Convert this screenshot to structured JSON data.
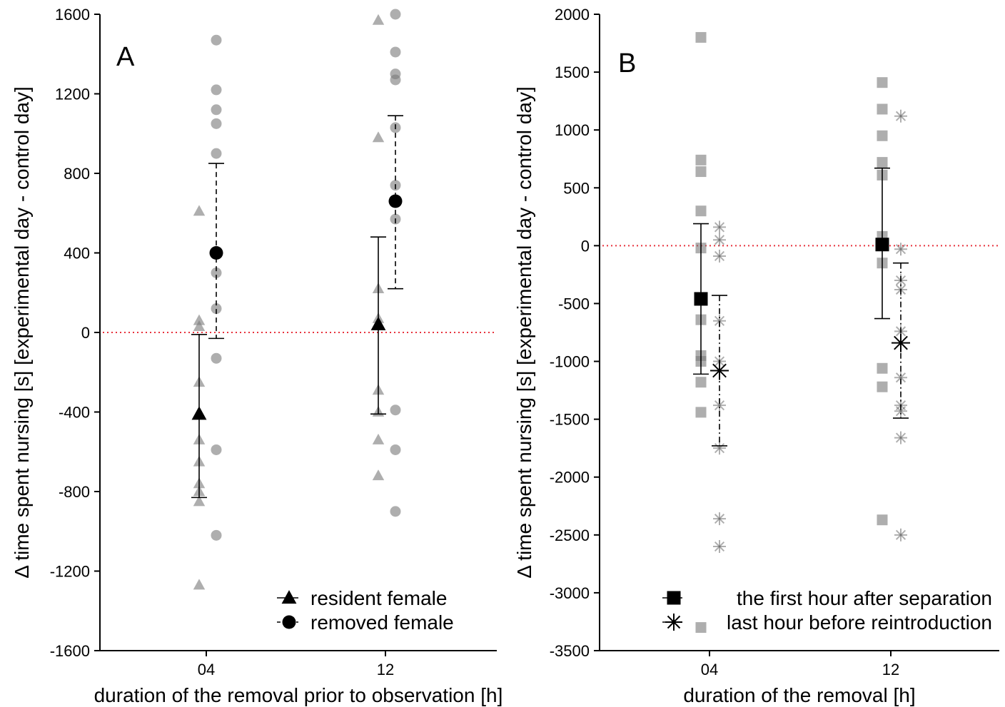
{
  "chart_data": [
    {
      "type": "scatter",
      "panel_label": "A",
      "xlabel": "duration of the removal prior to observation [h]",
      "ylabel": "Δ time spent nursing [s] [experimental day - control day]",
      "categories": [
        "04",
        "12"
      ],
      "ylim": [
        -1600,
        1600
      ],
      "yticks": [
        1600,
        1200,
        800,
        400,
        0,
        -400,
        -800,
        -1200,
        -1600
      ],
      "reference_line": 0,
      "legend_position": "bottom-right",
      "series": [
        {
          "name": "resident female",
          "marker": "triangle",
          "line_style": "solid",
          "groups": [
            {
              "category": "04",
              "mean": -410,
              "ci": [
                -830,
                -10
              ],
              "points": [
                610,
                60,
                30,
                -250,
                -540,
                -650,
                -760,
                -800,
                -850,
                -1270
              ]
            },
            {
              "category": "12",
              "mean": 40,
              "ci": [
                -410,
                480
              ],
              "points": [
                1570,
                980,
                220,
                70,
                40,
                -290,
                -400,
                -540,
                -720
              ]
            }
          ]
        },
        {
          "name": "removed female",
          "marker": "circle",
          "line_style": "dashed",
          "groups": [
            {
              "category": "04",
              "mean": 400,
              "ci": [
                -30,
                850
              ],
              "points": [
                1470,
                1220,
                1120,
                1050,
                900,
                300,
                120,
                -130,
                -590,
                -1020
              ]
            },
            {
              "category": "12",
              "mean": 660,
              "ci": [
                220,
                1090
              ],
              "points": [
                1600,
                1410,
                1300,
                1270,
                1030,
                740,
                570,
                -390,
                -590,
                -900
              ]
            }
          ]
        }
      ]
    },
    {
      "type": "scatter",
      "panel_label": "B",
      "xlabel": "duration of the removal [h]",
      "ylabel": "Δ time spent nursing [s] [experimental day - control day]",
      "categories": [
        "04",
        "12"
      ],
      "ylim": [
        -3500,
        2000
      ],
      "yticks": [
        2000,
        1500,
        1000,
        500,
        0,
        -500,
        -1000,
        -1500,
        -2000,
        -2500,
        -3000,
        -3500
      ],
      "reference_line": 0,
      "legend_position": "bottom-right",
      "series": [
        {
          "name": "the first hour after separation",
          "marker": "square",
          "line_style": "solid",
          "groups": [
            {
              "category": "04",
              "mean": -460,
              "ci": [
                -1110,
                190
              ],
              "points": [
                1800,
                740,
                640,
                300,
                -20,
                -640,
                -950,
                -1000,
                -1180,
                -1440,
                -3300
              ]
            },
            {
              "category": "12",
              "mean": 10,
              "ci": [
                -630,
                670
              ],
              "points": [
                1410,
                1180,
                950,
                720,
                610,
                80,
                -150,
                -1060,
                -1220,
                -2370
              ]
            }
          ]
        },
        {
          "name": "last hour before reintroduction",
          "marker": "asterisk",
          "line_style": "dashdot",
          "groups": [
            {
              "category": "04",
              "mean": -1080,
              "ci": [
                -1730,
                -430
              ],
              "points": [
                160,
                50,
                -90,
                -650,
                -1000,
                -1380,
                -1750,
                -2360,
                -2600
              ]
            },
            {
              "category": "12",
              "mean": -840,
              "ci": [
                -1490,
                -150
              ],
              "points": [
                1120,
                -30,
                -300,
                -380,
                -740,
                -1140,
                -1380,
                -1430,
                -1660,
                -2500
              ]
            }
          ]
        }
      ]
    }
  ]
}
